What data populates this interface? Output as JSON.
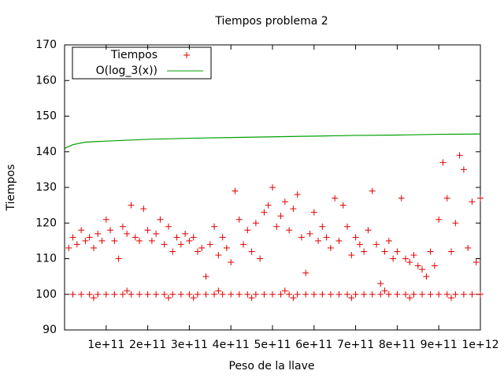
{
  "chart_data": {
    "type": "scatter",
    "title": "Tiempos problema 2",
    "x_label": "Peso de la llave",
    "y_label": "Tiempos",
    "xlim": [
      0,
      1000000000000.0
    ],
    "ylim": [
      90,
      170
    ],
    "xticks": [
      {
        "value": 100000000000.0,
        "label": "1e+11"
      },
      {
        "value": 200000000000.0,
        "label": "2e+11"
      },
      {
        "value": 300000000000.0,
        "label": "3e+11"
      },
      {
        "value": 400000000000.0,
        "label": "4e+11"
      },
      {
        "value": 500000000000.0,
        "label": "5e+11"
      },
      {
        "value": 600000000000.0,
        "label": "6e+11"
      },
      {
        "value": 700000000000.0,
        "label": "7e+11"
      },
      {
        "value": 800000000000.0,
        "label": "8e+11"
      },
      {
        "value": 900000000000.0,
        "label": "9e+11"
      },
      {
        "value": 1000000000000.0,
        "label": "1e+12"
      }
    ],
    "yticks": [
      90,
      100,
      110,
      120,
      130,
      140,
      150,
      160,
      170
    ],
    "legend": "top-left",
    "series": [
      {
        "name": "Tiempos",
        "color": "#e00000",
        "style": "points",
        "x": [
          20000000000.0,
          40000000000.0,
          60000000000.0,
          80000000000.0,
          100000000000.0,
          120000000000.0,
          140000000000.0,
          160000000000.0,
          180000000000.0,
          200000000000.0,
          220000000000.0,
          240000000000.0,
          260000000000.0,
          280000000000.0,
          300000000000.0,
          320000000000.0,
          340000000000.0,
          360000000000.0,
          380000000000.0,
          400000000000.0,
          420000000000.0,
          440000000000.0,
          460000000000.0,
          480000000000.0,
          500000000000.0,
          520000000000.0,
          540000000000.0,
          560000000000.0,
          580000000000.0,
          600000000000.0,
          620000000000.0,
          640000000000.0,
          660000000000.0,
          680000000000.0,
          700000000000.0,
          720000000000.0,
          740000000000.0,
          760000000000.0,
          780000000000.0,
          800000000000.0,
          820000000000.0,
          840000000000.0,
          860000000000.0,
          880000000000.0,
          900000000000.0,
          920000000000.0,
          940000000000.0,
          960000000000.0,
          980000000000.0,
          1000000000000.0,
          70000000000.0,
          250000000000.0,
          310000000000.0,
          450000000000.0,
          550000000000.0,
          690000000000.0,
          830000000000.0,
          930000000000.0,
          150000000000.0,
          370000000000.0,
          530000000000.0,
          770000000000.0,
          10000000000.0,
          20000000000.0,
          30000000000.0,
          40000000000.0,
          50000000000.0,
          60000000000.0,
          70000000000.0,
          80000000000.0,
          90000000000.0,
          100000000000.0,
          110000000000.0,
          120000000000.0,
          130000000000.0,
          140000000000.0,
          150000000000.0,
          160000000000.0,
          170000000000.0,
          180000000000.0,
          190000000000.0,
          200000000000.0,
          210000000000.0,
          220000000000.0,
          230000000000.0,
          240000000000.0,
          250000000000.0,
          260000000000.0,
          270000000000.0,
          280000000000.0,
          290000000000.0,
          300000000000.0,
          310000000000.0,
          320000000000.0,
          330000000000.0,
          340000000000.0,
          350000000000.0,
          360000000000.0,
          370000000000.0,
          380000000000.0,
          390000000000.0,
          400000000000.0,
          410000000000.0,
          420000000000.0,
          430000000000.0,
          440000000000.0,
          450000000000.0,
          460000000000.0,
          470000000000.0,
          480000000000.0,
          490000000000.0,
          500000000000.0,
          510000000000.0,
          520000000000.0,
          530000000000.0,
          540000000000.0,
          550000000000.0,
          560000000000.0,
          570000000000.0,
          580000000000.0,
          590000000000.0,
          600000000000.0,
          610000000000.0,
          620000000000.0,
          630000000000.0,
          640000000000.0,
          650000000000.0,
          660000000000.0,
          670000000000.0,
          680000000000.0,
          690000000000.0,
          700000000000.0,
          710000000000.0,
          720000000000.0,
          730000000000.0,
          740000000000.0,
          750000000000.0,
          760000000000.0,
          770000000000.0,
          780000000000.0,
          790000000000.0,
          800000000000.0,
          810000000000.0,
          820000000000.0,
          830000000000.0,
          840000000000.0,
          850000000000.0,
          860000000000.0,
          870000000000.0,
          880000000000.0,
          890000000000.0,
          900000000000.0,
          910000000000.0,
          920000000000.0,
          930000000000.0,
          940000000000.0,
          950000000000.0,
          960000000000.0,
          970000000000.0,
          980000000000.0,
          990000000000.0,
          1000000000000.0
        ],
        "values": [
          100,
          100,
          100,
          100,
          100,
          100,
          100,
          100,
          100,
          100,
          100,
          100,
          100,
          100,
          100,
          100,
          100,
          100,
          100,
          100,
          100,
          100,
          100,
          100,
          100,
          100,
          100,
          100,
          100,
          100,
          100,
          100,
          100,
          100,
          100,
          100,
          100,
          100,
          100,
          100,
          100,
          100,
          100,
          100,
          100,
          100,
          100,
          100,
          100,
          100,
          99,
          99,
          99,
          99,
          99,
          99,
          99,
          99,
          101,
          101,
          101,
          101,
          113,
          116,
          114,
          118,
          115,
          116,
          113,
          117,
          115,
          121,
          118,
          115,
          110,
          119,
          117,
          125,
          116,
          115,
          124,
          118,
          115,
          117,
          121,
          114,
          119,
          112,
          116,
          114,
          117,
          115,
          116,
          112,
          113,
          105,
          114,
          119,
          111,
          116,
          113,
          109,
          129,
          121,
          114,
          118,
          112,
          120,
          110,
          123,
          125,
          130,
          119,
          122,
          126,
          118,
          124,
          128,
          116,
          106,
          117,
          123,
          115,
          119,
          116,
          113,
          127,
          115,
          125,
          119,
          111,
          116,
          114,
          112,
          118,
          129,
          114,
          103,
          112,
          115,
          110,
          112,
          127,
          110,
          109,
          111,
          108,
          107,
          105,
          112,
          108,
          121,
          137,
          127,
          112,
          120,
          139,
          135,
          113,
          126,
          109,
          127
        ]
      },
      {
        "name": "O(log_3(x))",
        "color": "#00a000",
        "style": "line",
        "x": [
          1000000000.0,
          20000000000.0,
          50000000000.0,
          100000000000.0,
          200000000000.0,
          300000000000.0,
          400000000000.0,
          500000000000.0,
          600000000000.0,
          700000000000.0,
          800000000000.0,
          900000000000.0,
          1000000000000.0
        ],
        "values": [
          141,
          142,
          142.7,
          143,
          143.5,
          143.8,
          144,
          144.2,
          144.4,
          144.6,
          144.7,
          144.9,
          145
        ]
      }
    ]
  }
}
